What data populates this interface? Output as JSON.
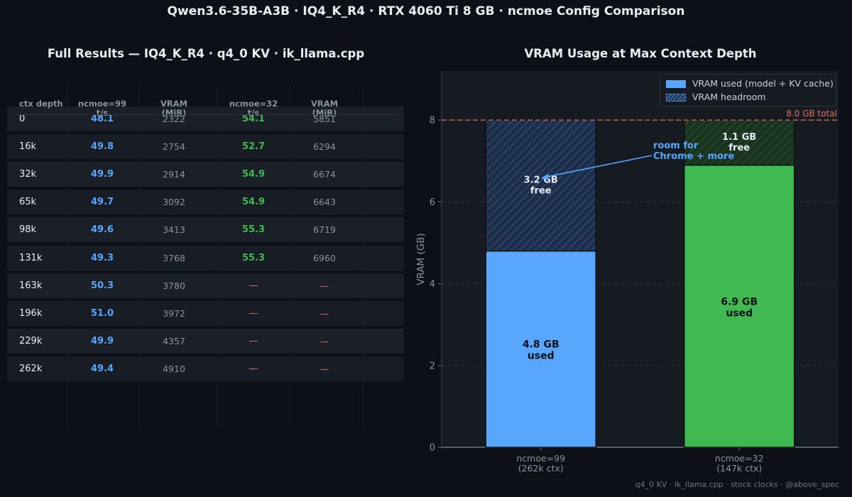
{
  "title": "Qwen3.6-35B-A3B  ·  IQ4_K_R4  ·  RTX 4060 Ti 8 GB  ·  ncmoe Config Comparison",
  "table": {
    "title": "Full Results — IQ4_K_R4 · q4_0 KV · ik_llama.cpp",
    "headers": [
      "ctx depth",
      "ncmoe=99\nt/s",
      "VRAM\n(MiB)",
      "ncmoe=32\nt/s",
      "VRAM\n(MiB)"
    ],
    "rows": [
      {
        "ctx": "0",
        "ts99": "48.1",
        "vram99": "2322",
        "ts32": "54.1",
        "vram32": "5851"
      },
      {
        "ctx": "16k",
        "ts99": "49.8",
        "vram99": "2754",
        "ts32": "52.7",
        "vram32": "6294"
      },
      {
        "ctx": "32k",
        "ts99": "49.9",
        "vram99": "2914",
        "ts32": "54.9",
        "vram32": "6674"
      },
      {
        "ctx": "65k",
        "ts99": "49.7",
        "vram99": "3092",
        "ts32": "54.9",
        "vram32": "6643"
      },
      {
        "ctx": "98k",
        "ts99": "49.6",
        "vram99": "3413",
        "ts32": "55.3",
        "vram32": "6719"
      },
      {
        "ctx": "131k",
        "ts99": "49.3",
        "vram99": "3768",
        "ts32": "55.3",
        "vram32": "6960"
      },
      {
        "ctx": "163k",
        "ts99": "50.3",
        "vram99": "3780",
        "ts32": "—",
        "vram32": "—"
      },
      {
        "ctx": "196k",
        "ts99": "51.0",
        "vram99": "3972",
        "ts32": "—",
        "vram32": "—"
      },
      {
        "ctx": "229k",
        "ts99": "49.9",
        "vram99": "4357",
        "ts32": "—",
        "vram32": "—"
      },
      {
        "ctx": "262k",
        "ts99": "49.4",
        "vram99": "4910",
        "ts32": "—",
        "vram32": "—"
      }
    ]
  },
  "chart_data": {
    "type": "bar",
    "stacked": true,
    "title": "VRAM Usage at Max Context Depth",
    "xlabel": "",
    "ylabel": "VRAM (GB)",
    "ylim": [
      0,
      9.2
    ],
    "yticks": [
      0,
      2,
      4,
      6,
      8
    ],
    "grid": true,
    "legend_position": "top-right",
    "categories": [
      "ncmoe=99\n(262k ctx)",
      "ncmoe=32\n(147k ctx)"
    ],
    "series": [
      {
        "name": "VRAM used (model + KV cache)",
        "values": [
          4.8,
          6.9
        ],
        "colors": [
          "#58a6ff",
          "#3fb950"
        ],
        "labels": [
          "4.8 GB\nused",
          "6.9 GB\nused"
        ]
      },
      {
        "name": "VRAM headroom",
        "values": [
          3.2,
          1.1
        ],
        "colors": [
          "#1c2e4a",
          "#1a3320"
        ],
        "hatch_colors": [
          "#3b5f8f",
          "#2f5a36"
        ],
        "labels": [
          "3.2 GB\nfree",
          "1.1 GB\nfree"
        ]
      }
    ],
    "reference_line": {
      "y": 8.0,
      "label": "8.0 GB total",
      "color": "#e3715b"
    },
    "annotation": {
      "text": "room for\nChrome + more",
      "target_category": 0,
      "target_y": 6.6,
      "color": "#58a6ff"
    }
  },
  "footer": "q4_0 KV  ·  ik_llama.cpp  ·  stock clocks  ·  @above_spec"
}
